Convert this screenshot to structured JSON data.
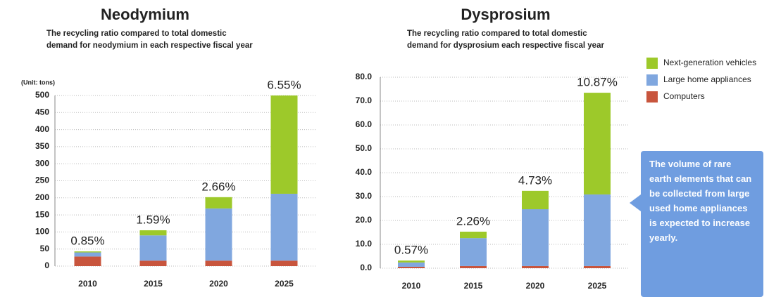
{
  "chart_data": [
    {
      "type": "bar",
      "stacked": true,
      "title": "Neodymium",
      "subtitle": [
        "The recycling ratio compared to total domestic",
        "demand for neodymium in each respective fiscal year"
      ],
      "y_label": "(Unit: tons)",
      "categories": [
        "2010",
        "2015",
        "2020",
        "2025"
      ],
      "annotations": [
        "0.85%",
        "1.59%",
        "2.66%",
        "6.55%"
      ],
      "series": [
        {
          "name": "Computers",
          "color": "#c8553d",
          "values": [
            28,
            16,
            16,
            16
          ]
        },
        {
          "name": "Large home appliances",
          "color": "#80a7df",
          "values": [
            12,
            74,
            153,
            196
          ]
        },
        {
          "name": "Next-generation vehicles",
          "color": "#9dc92a",
          "values": [
            3,
            15,
            33,
            288
          ]
        }
      ],
      "ylim": [
        0,
        500
      ],
      "yticks": [
        0,
        50,
        100,
        150,
        200,
        250,
        300,
        350,
        400,
        450,
        500
      ]
    },
    {
      "type": "bar",
      "stacked": true,
      "title": "Dysprosium",
      "subtitle": [
        "The recycling ratio compared to total domestic",
        "demand for dysprosium each respective fiscal year"
      ],
      "categories": [
        "2010",
        "2015",
        "2020",
        "2025"
      ],
      "annotations": [
        "0.57%",
        "2.26%",
        "4.73%",
        "10.87%"
      ],
      "series": [
        {
          "name": "Computers",
          "color": "#c8553d",
          "values": [
            0.6,
            0.9,
            0.9,
            0.9
          ]
        },
        {
          "name": "Large home appliances",
          "color": "#80a7df",
          "values": [
            1.8,
            11.7,
            23.8,
            30
          ]
        },
        {
          "name": "Next-generation vehicles",
          "color": "#9dc92a",
          "values": [
            0.8,
            2.7,
            7.7,
            42.6
          ]
        }
      ],
      "ylim": [
        0,
        80
      ],
      "yticks": [
        {
          "value": 0,
          "label": "0.0"
        },
        {
          "value": 10,
          "label": "10.0"
        },
        {
          "value": 20,
          "label": "20.0"
        },
        {
          "value": 30,
          "label": "30.0"
        },
        {
          "value": 40,
          "label": "40.0"
        },
        {
          "value": 50,
          "label": "50.0"
        },
        {
          "value": 60,
          "label": "60.0"
        },
        {
          "value": 70,
          "label": "70.0"
        },
        {
          "value": 80,
          "label": "80.0"
        }
      ]
    }
  ],
  "callout": "The volume of rare earth elements that can be collected from large used home appliances is expected to increase yearly."
}
